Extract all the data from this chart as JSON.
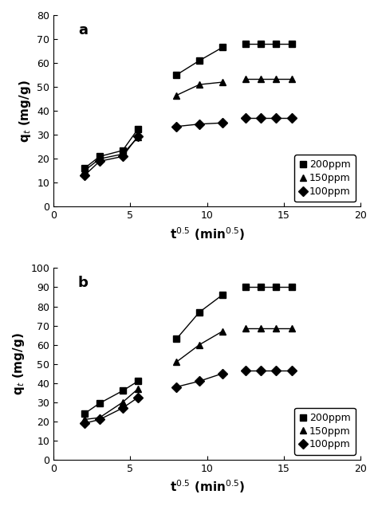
{
  "panel_a": {
    "series_200ppm": {
      "segments": [
        {
          "x": [
            2.0,
            3.0,
            4.5,
            5.5
          ],
          "y": [
            16.0,
            21.0,
            23.5,
            32.5
          ]
        },
        {
          "x": [
            8.0,
            9.5,
            11.0
          ],
          "y": [
            55.0,
            61.0,
            66.5
          ]
        },
        {
          "x": [
            12.5,
            13.5,
            14.5,
            15.5
          ],
          "y": [
            68.0,
            68.0,
            68.0,
            68.0
          ]
        }
      ],
      "marker": "s",
      "label": "200ppm"
    },
    "series_150ppm": {
      "segments": [
        {
          "x": [
            2.0,
            3.0,
            4.5,
            5.5
          ],
          "y": [
            15.0,
            20.0,
            22.0,
            29.0
          ]
        },
        {
          "x": [
            8.0,
            9.5,
            11.0
          ],
          "y": [
            46.5,
            51.0,
            52.0
          ]
        },
        {
          "x": [
            12.5,
            13.5,
            14.5,
            15.5
          ],
          "y": [
            53.5,
            53.5,
            53.5,
            53.5
          ]
        }
      ],
      "marker": "^",
      "label": "150ppm"
    },
    "series_100ppm": {
      "segments": [
        {
          "x": [
            2.0,
            3.0,
            4.5,
            5.5
          ],
          "y": [
            13.0,
            19.0,
            21.0,
            29.5
          ]
        },
        {
          "x": [
            8.0,
            9.5,
            11.0
          ],
          "y": [
            33.5,
            34.5,
            35.0
          ]
        },
        {
          "x": [
            12.5,
            13.5,
            14.5,
            15.5
          ],
          "y": [
            37.0,
            37.0,
            37.0,
            37.0
          ]
        }
      ],
      "marker": "D",
      "label": "100ppm"
    },
    "ylabel": "q$_t$ (mg/g)",
    "xlabel": "t$^{0.5}$ (min$^{0.5}$)",
    "ylim": [
      0,
      80
    ],
    "xlim": [
      0,
      20
    ],
    "yticks": [
      0,
      10,
      20,
      30,
      40,
      50,
      60,
      70,
      80
    ],
    "xticks": [
      0,
      5,
      10,
      15,
      20
    ],
    "label": "a"
  },
  "panel_b": {
    "series_200ppm": {
      "segments": [
        {
          "x": [
            2.0,
            3.0,
            4.5,
            5.5
          ],
          "y": [
            24.0,
            29.5,
            36.0,
            41.0
          ]
        },
        {
          "x": [
            8.0,
            9.5,
            11.0
          ],
          "y": [
            63.0,
            77.0,
            86.0
          ]
        },
        {
          "x": [
            12.5,
            13.5,
            14.5,
            15.5
          ],
          "y": [
            90.0,
            90.0,
            90.0,
            90.0
          ]
        }
      ],
      "marker": "s",
      "label": "200ppm"
    },
    "series_150ppm": {
      "segments": [
        {
          "x": [
            2.0,
            3.0,
            4.5,
            5.5
          ],
          "y": [
            21.0,
            22.0,
            30.0,
            37.0
          ]
        },
        {
          "x": [
            8.0,
            9.5,
            11.0
          ],
          "y": [
            51.0,
            60.0,
            67.0
          ]
        },
        {
          "x": [
            12.5,
            13.5,
            14.5,
            15.5
          ],
          "y": [
            68.5,
            68.5,
            68.5,
            68.5
          ]
        }
      ],
      "marker": "^",
      "label": "150ppm"
    },
    "series_100ppm": {
      "segments": [
        {
          "x": [
            2.0,
            3.0,
            4.5,
            5.5
          ],
          "y": [
            19.0,
            21.0,
            27.0,
            32.5
          ]
        },
        {
          "x": [
            8.0,
            9.5,
            11.0
          ],
          "y": [
            38.0,
            41.0,
            45.0
          ]
        },
        {
          "x": [
            12.5,
            13.5,
            14.5,
            15.5
          ],
          "y": [
            46.5,
            46.5,
            46.5,
            46.5
          ]
        }
      ],
      "marker": "D",
      "label": "100ppm"
    },
    "ylabel": "q$_t$ (mg/g)",
    "xlabel": "t$^{0.5}$ (min$^{0.5}$)",
    "ylim": [
      0,
      100
    ],
    "xlim": [
      0,
      20
    ],
    "yticks": [
      0,
      10,
      20,
      30,
      40,
      50,
      60,
      70,
      80,
      90,
      100
    ],
    "xticks": [
      0,
      5,
      10,
      15,
      20
    ],
    "label": "b"
  },
  "marker_size": 6,
  "line_color": "black",
  "marker_color": "black",
  "legend_fontsize": 9,
  "axis_fontsize": 11,
  "label_fontsize": 13
}
